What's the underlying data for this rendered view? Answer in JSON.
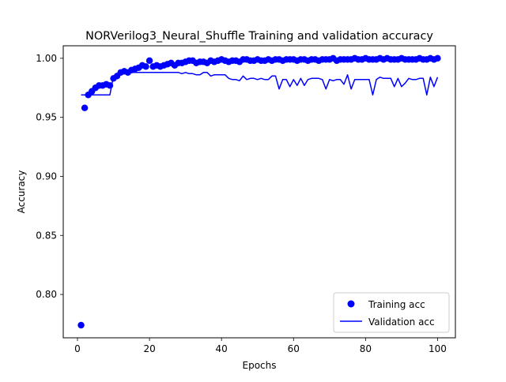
{
  "chart_data": {
    "type": "line",
    "title": "NORVerilog3_Neural_Shuffle Training and validation accuracy",
    "xlabel": "Epochs",
    "ylabel": "Accuracy",
    "xlim": [
      -3.95,
      104.95
    ],
    "ylim": [
      0.7633,
      1.0106
    ],
    "x_ticks": [
      0,
      20,
      40,
      60,
      80,
      100
    ],
    "x_tick_labels": [
      "0",
      "20",
      "40",
      "60",
      "80",
      "100"
    ],
    "y_ticks": [
      0.8,
      0.85,
      0.9,
      0.95,
      1.0
    ],
    "y_tick_labels": [
      "0.80",
      "0.85",
      "0.90",
      "0.95",
      "1.00"
    ],
    "grid": false,
    "legend_position": "lower-right",
    "colors": {
      "training": "#0000ff",
      "validation": "#0000ff"
    },
    "series": [
      {
        "name": "Training acc",
        "style": "markers",
        "x": [
          1,
          2,
          3,
          4,
          5,
          6,
          7,
          8,
          9,
          10,
          11,
          12,
          13,
          14,
          15,
          16,
          17,
          18,
          19,
          20,
          21,
          22,
          23,
          24,
          25,
          26,
          27,
          28,
          29,
          30,
          31,
          32,
          33,
          34,
          35,
          36,
          37,
          38,
          39,
          40,
          41,
          42,
          43,
          44,
          45,
          46,
          47,
          48,
          49,
          50,
          51,
          52,
          53,
          54,
          55,
          56,
          57,
          58,
          59,
          60,
          61,
          62,
          63,
          64,
          65,
          66,
          67,
          68,
          69,
          70,
          71,
          72,
          73,
          74,
          75,
          76,
          77,
          78,
          79,
          80,
          81,
          82,
          83,
          84,
          85,
          86,
          87,
          88,
          89,
          90,
          91,
          92,
          93,
          94,
          95,
          96,
          97,
          98,
          99,
          100
        ],
        "y": [
          0.774,
          0.958,
          0.969,
          0.972,
          0.975,
          0.977,
          0.977,
          0.978,
          0.977,
          0.983,
          0.985,
          0.988,
          0.989,
          0.988,
          0.99,
          0.991,
          0.992,
          0.994,
          0.993,
          0.998,
          0.993,
          0.994,
          0.993,
          0.994,
          0.995,
          0.996,
          0.994,
          0.996,
          0.996,
          0.997,
          0.998,
          0.998,
          0.996,
          0.997,
          0.997,
          0.996,
          0.998,
          0.997,
          0.998,
          0.999,
          0.998,
          0.997,
          0.998,
          0.998,
          0.997,
          0.999,
          0.999,
          0.998,
          0.998,
          0.999,
          0.998,
          0.998,
          0.999,
          0.998,
          0.999,
          0.999,
          0.998,
          0.999,
          0.999,
          0.999,
          0.998,
          0.999,
          0.999,
          0.998,
          0.999,
          0.999,
          0.998,
          0.999,
          0.999,
          0.999,
          1.0,
          0.998,
          0.999,
          0.999,
          0.999,
          0.999,
          1.0,
          0.999,
          0.999,
          1.0,
          0.999,
          0.999,
          0.999,
          1.0,
          0.999,
          1.0,
          0.999,
          0.999,
          0.999,
          1.0,
          0.999,
          0.999,
          0.999,
          0.999,
          1.0,
          0.999,
          0.999,
          1.0,
          0.999,
          1.0
        ]
      },
      {
        "name": "Validation acc",
        "style": "line",
        "x": [
          1,
          2,
          3,
          4,
          5,
          6,
          7,
          8,
          9,
          10,
          11,
          12,
          13,
          14,
          15,
          16,
          17,
          18,
          19,
          20,
          21,
          22,
          23,
          24,
          25,
          26,
          27,
          28,
          29,
          30,
          31,
          32,
          33,
          34,
          35,
          36,
          37,
          38,
          39,
          40,
          41,
          42,
          43,
          44,
          45,
          46,
          47,
          48,
          49,
          50,
          51,
          52,
          53,
          54,
          55,
          56,
          57,
          58,
          59,
          60,
          61,
          62,
          63,
          64,
          65,
          66,
          67,
          68,
          69,
          70,
          71,
          72,
          73,
          74,
          75,
          76,
          77,
          78,
          79,
          80,
          81,
          82,
          83,
          84,
          85,
          86,
          87,
          88,
          89,
          90,
          91,
          92,
          93,
          94,
          95,
          96,
          97,
          98,
          99,
          100
        ],
        "y": [
          0.969,
          0.969,
          0.969,
          0.969,
          0.969,
          0.969,
          0.969,
          0.969,
          0.969,
          0.985,
          0.985,
          0.988,
          0.988,
          0.988,
          0.988,
          0.988,
          0.988,
          0.988,
          0.988,
          0.988,
          0.988,
          0.988,
          0.988,
          0.988,
          0.988,
          0.988,
          0.988,
          0.988,
          0.987,
          0.988,
          0.987,
          0.987,
          0.986,
          0.986,
          0.988,
          0.988,
          0.985,
          0.986,
          0.986,
          0.986,
          0.986,
          0.983,
          0.982,
          0.982,
          0.981,
          0.985,
          0.982,
          0.983,
          0.983,
          0.982,
          0.983,
          0.982,
          0.982,
          0.985,
          0.985,
          0.974,
          0.982,
          0.982,
          0.976,
          0.982,
          0.977,
          0.983,
          0.977,
          0.982,
          0.983,
          0.983,
          0.983,
          0.982,
          0.974,
          0.982,
          0.981,
          0.982,
          0.982,
          0.978,
          0.986,
          0.974,
          0.982,
          0.982,
          0.982,
          0.982,
          0.982,
          0.969,
          0.982,
          0.984,
          0.983,
          0.983,
          0.983,
          0.976,
          0.983,
          0.976,
          0.979,
          0.983,
          0.982,
          0.982,
          0.983,
          0.983,
          0.969,
          0.984,
          0.976,
          0.984
        ]
      }
    ]
  }
}
